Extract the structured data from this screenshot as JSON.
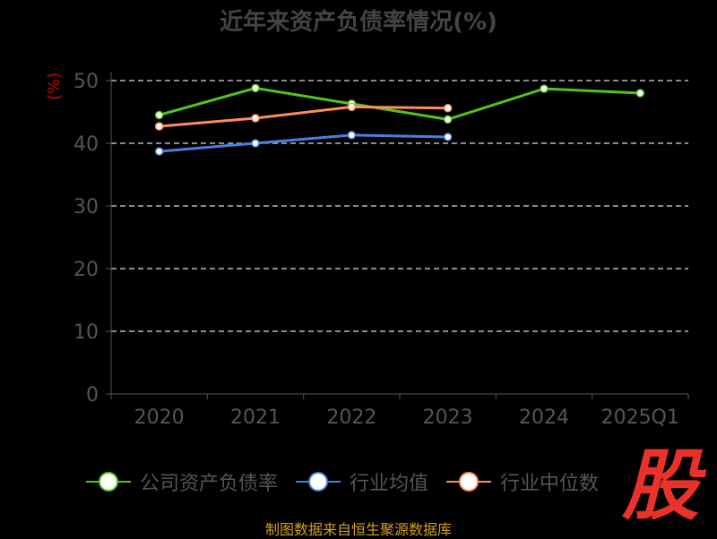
{
  "chart_data": {
    "type": "line",
    "title": "近年来资产负债率情况(%)",
    "ylabel": "(%)",
    "xlabel": "",
    "categories": [
      "2020",
      "2021",
      "2022",
      "2023",
      "2024",
      "2025Q1"
    ],
    "ylim": [
      0,
      50
    ],
    "yticks": [
      0,
      10,
      20,
      30,
      40,
      50
    ],
    "grid": true,
    "legend_position": "bottom",
    "series": [
      {
        "name": "公司资产负债率",
        "color": "#52c41a",
        "values": [
          44.5,
          48.8,
          46.3,
          43.8,
          48.7,
          48.0
        ]
      },
      {
        "name": "行业均值",
        "color": "#4a7fe0",
        "values": [
          38.7,
          40.0,
          41.3,
          41.0,
          null,
          null
        ]
      },
      {
        "name": "行业中位数",
        "color": "#ff8c5a",
        "values": [
          42.7,
          44.0,
          45.8,
          45.6,
          null,
          null
        ]
      }
    ]
  },
  "source_text": "制图数据来自恒生聚源数据库",
  "logo_text": "股"
}
